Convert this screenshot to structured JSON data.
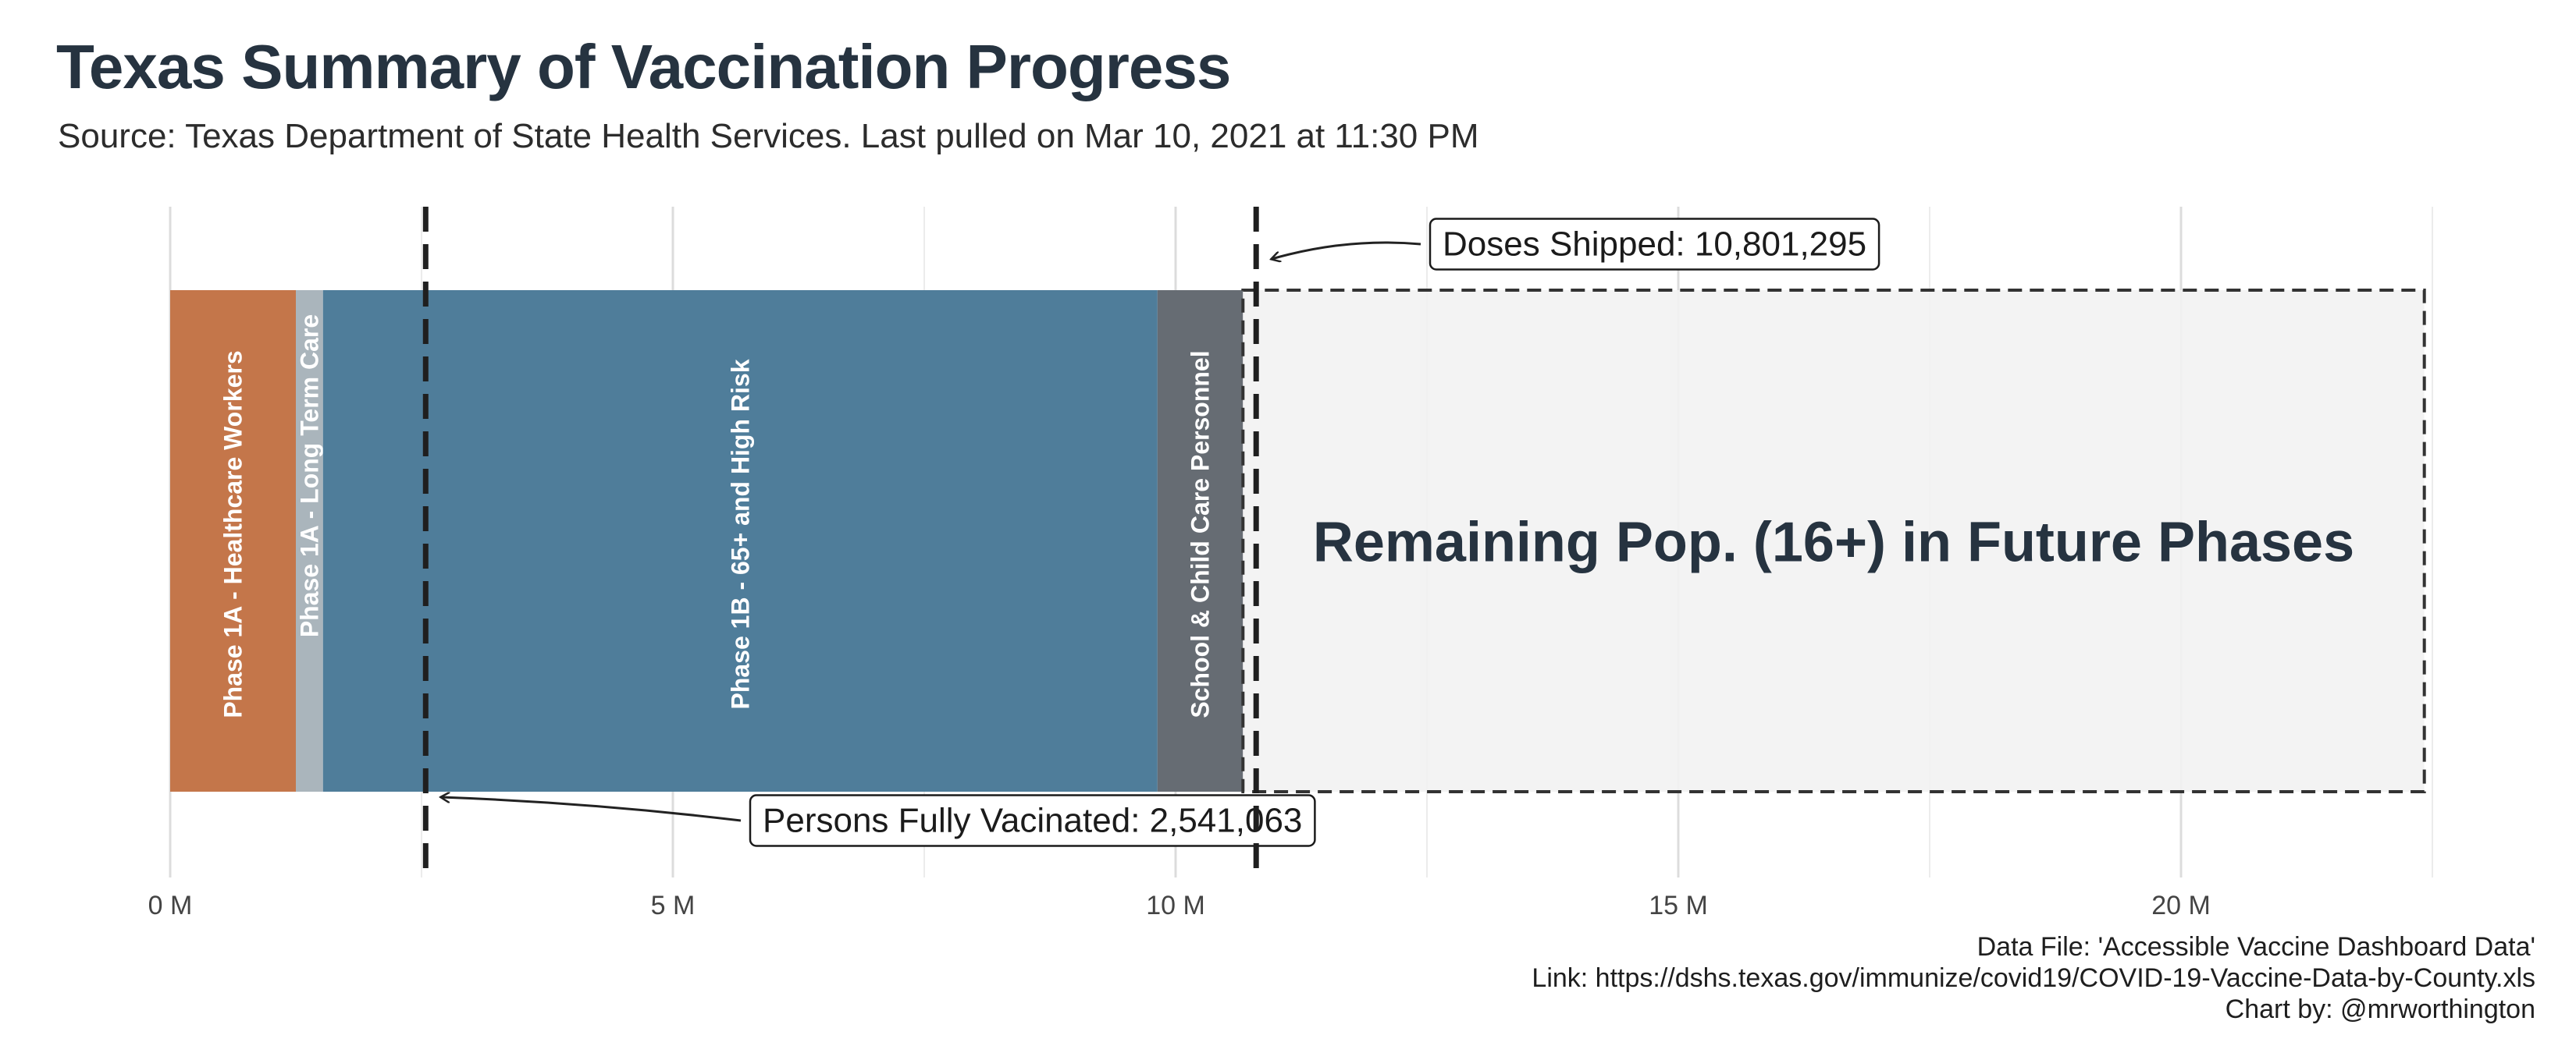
{
  "title": "Texas Summary of Vaccination Progress",
  "subtitle": "Source: Texas Department of State Health Services. Last pulled on Mar 10, 2021 at 11:30 PM",
  "footer": {
    "line1": "Data File: 'Accessible Vaccine Dashboard Data'",
    "line2": "Link: https://dshs.texas.gov/immunize/covid19/COVID-19-Vaccine-Data-by-County.xls",
    "line3": "Chart by: @mrworthington"
  },
  "chart_data": {
    "type": "bar",
    "orientation": "horizontal-stacked",
    "x_ticks": [
      0,
      5000000,
      10000000,
      15000000,
      20000000
    ],
    "x_tick_labels": [
      "0 M",
      "5 M",
      "10 M",
      "15 M",
      "20 M"
    ],
    "xlim": [
      0,
      22500000
    ],
    "grid": true,
    "segments": [
      {
        "label": "Phase 1A - Healthcare Workers",
        "value": 1250000,
        "color": "#c4764a"
      },
      {
        "label": "Phase 1A - Long Term Care",
        "value": 270000,
        "color": "#aab5bc"
      },
      {
        "label": "Phase 1B - 65+ and High Risk",
        "value": 8300000,
        "color": "#4f7d9a"
      },
      {
        "label": "School & Child Care Personnel",
        "value": 850000,
        "color": "#666c73"
      },
      {
        "label": "Remaining Pop. (16+) in Future Phases",
        "value": 11750000,
        "color": "#f2f2f2"
      }
    ],
    "reference_lines": [
      {
        "label": "Persons Fully Vacinated: 2,541,063",
        "value": 2541063
      },
      {
        "label": "Doses Shipped: 10,801,295",
        "value": 10801295
      }
    ]
  }
}
